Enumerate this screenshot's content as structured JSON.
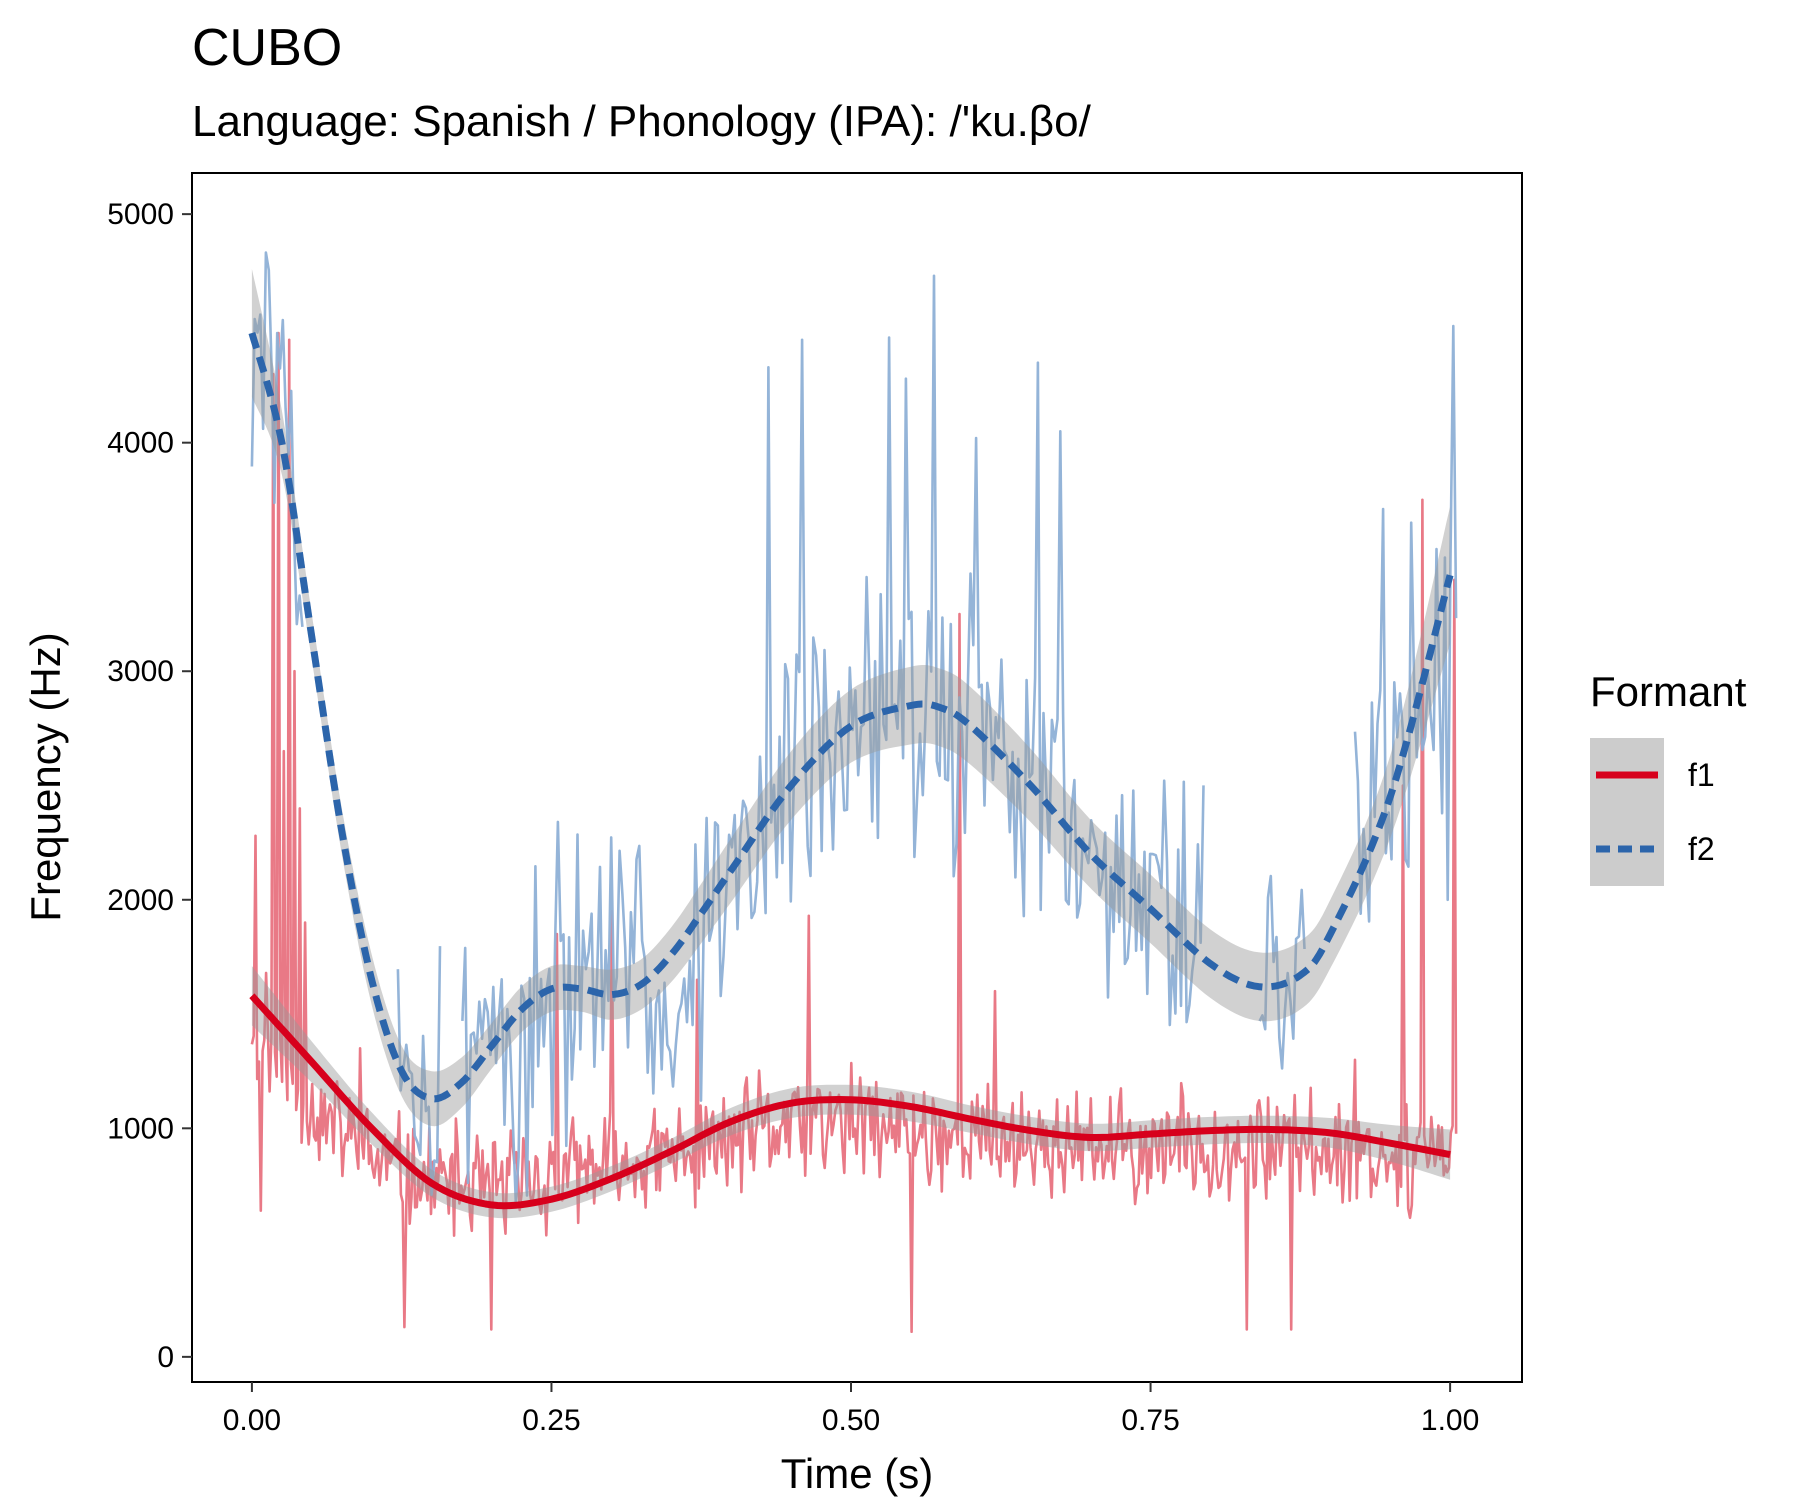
{
  "chart_data": {
    "type": "line",
    "title": "CUBO",
    "subtitle": "Language: Spanish / Phonology (IPA): /'ku.βo/",
    "xlabel": "Time (s)",
    "ylabel": "Frequency (Hz)",
    "xlim": [
      -0.05,
      1.06
    ],
    "ylim": [
      -110,
      5180
    ],
    "x_ticks": [
      0,
      0.25,
      0.5,
      0.75,
      1.0
    ],
    "x_tick_labels": [
      "0.00",
      "0.25",
      "0.50",
      "0.75",
      "1.00"
    ],
    "y_ticks": [
      0,
      1000,
      2000,
      3000,
      4000,
      5000
    ],
    "y_tick_labels": [
      "0",
      "1000",
      "2000",
      "3000",
      "4000",
      "5000"
    ],
    "grid": false,
    "legend": {
      "title": "Formant",
      "placement": "right",
      "entries": [
        {
          "label": "f1",
          "color": "#d7001c",
          "style": "solid"
        },
        {
          "label": "f2",
          "color": "#2c65ab",
          "style": "dashed"
        }
      ]
    },
    "colors": {
      "f1_raw": "#e8727f",
      "f2_raw": "#8eb0d6",
      "f1_smooth": "#d7001c",
      "f2_smooth": "#2c65ab",
      "ribbon": "#999999"
    },
    "series": [
      {
        "name": "f1",
        "kind": "smooth",
        "x": [
          0,
          0.05,
          0.1,
          0.15,
          0.2,
          0.25,
          0.3,
          0.35,
          0.4,
          0.45,
          0.5,
          0.55,
          0.6,
          0.65,
          0.7,
          0.75,
          0.8,
          0.85,
          0.9,
          0.95,
          1.0
        ],
        "y": [
          1580,
          1290,
          1000,
          760,
          665,
          690,
          780,
          900,
          1030,
          1110,
          1125,
          1095,
          1040,
          990,
          960,
          975,
          990,
          995,
          980,
          935,
          885
        ],
        "ci": [
          130,
          90,
          70,
          60,
          55,
          55,
          55,
          55,
          60,
          65,
          65,
          65,
          60,
          60,
          60,
          60,
          60,
          60,
          65,
          80,
          110
        ]
      },
      {
        "name": "f2",
        "kind": "smooth",
        "x": [
          0,
          0.025,
          0.05,
          0.075,
          0.1,
          0.125,
          0.15,
          0.175,
          0.2,
          0.225,
          0.25,
          0.275,
          0.3,
          0.325,
          0.35,
          0.375,
          0.4,
          0.45,
          0.5,
          0.55,
          0.575,
          0.6,
          0.65,
          0.7,
          0.75,
          0.8,
          0.84,
          0.875,
          0.9,
          0.95,
          1.0
        ],
        "y": [
          4480,
          4000,
          3150,
          2300,
          1650,
          1250,
          1130,
          1200,
          1360,
          1520,
          1610,
          1610,
          1585,
          1630,
          1760,
          1940,
          2130,
          2500,
          2760,
          2850,
          2840,
          2760,
          2500,
          2200,
          1960,
          1720,
          1620,
          1670,
          1850,
          2450,
          3420
        ],
        "ci": [
          280,
          140,
          100,
          100,
          110,
          110,
          120,
          110,
          100,
          100,
          100,
          100,
          110,
          110,
          120,
          130,
          140,
          150,
          160,
          170,
          170,
          170,
          160,
          150,
          150,
          150,
          150,
          150,
          150,
          180,
          300
        ]
      },
      {
        "name": "f1",
        "kind": "raw",
        "x_start": 0,
        "x_end": 1.005,
        "n": 680,
        "seed": 11,
        "center": [
          [
            0,
            1450
          ],
          [
            0.05,
            1100
          ],
          [
            0.1,
            860
          ],
          [
            0.15,
            760
          ],
          [
            0.2,
            750
          ],
          [
            0.25,
            780
          ],
          [
            0.3,
            820
          ],
          [
            0.35,
            880
          ],
          [
            0.4,
            950
          ],
          [
            0.45,
            1020
          ],
          [
            0.5,
            1020
          ],
          [
            0.55,
            990
          ],
          [
            0.6,
            960
          ],
          [
            0.65,
            930
          ],
          [
            0.7,
            900
          ],
          [
            0.75,
            910
          ],
          [
            0.8,
            930
          ],
          [
            0.85,
            930
          ],
          [
            0.9,
            910
          ],
          [
            0.95,
            880
          ],
          [
            1.0,
            860
          ]
        ],
        "spread": 300,
        "min": 110,
        "spikes": [
          [
            0.003,
            2280
          ],
          [
            0.007,
            640
          ],
          [
            0.012,
            1680
          ],
          [
            0.018,
            4300
          ],
          [
            0.022,
            4480
          ],
          [
            0.027,
            2650
          ],
          [
            0.031,
            4450
          ],
          [
            0.035,
            3000
          ],
          [
            0.04,
            2400
          ],
          [
            0.045,
            1900
          ],
          [
            0.09,
            1350
          ],
          [
            0.127,
            130
          ],
          [
            0.2,
            120
          ],
          [
            0.255,
            1850
          ],
          [
            0.3,
            1950
          ],
          [
            0.372,
            1650
          ],
          [
            0.465,
            1930
          ],
          [
            0.525,
            960
          ],
          [
            0.55,
            110
          ],
          [
            0.59,
            3250
          ],
          [
            0.62,
            1600
          ],
          [
            0.83,
            120
          ],
          [
            0.868,
            120
          ],
          [
            0.92,
            1300
          ],
          [
            0.96,
            2500
          ],
          [
            0.977,
            3750
          ],
          [
            0.984,
            1050
          ],
          [
            1.003,
            3400
          ]
        ]
      },
      {
        "name": "f2",
        "kind": "raw",
        "x_start": 0,
        "x_end": 1.005,
        "n": 430,
        "seed": 29,
        "center": [
          [
            0,
            4300
          ],
          [
            0.03,
            4200
          ],
          [
            0.04,
            3300
          ],
          [
            0.06,
            2600
          ],
          [
            0.1,
            1700
          ],
          [
            0.12,
            1300
          ],
          [
            0.15,
            1150
          ],
          [
            0.2,
            1350
          ],
          [
            0.25,
            1600
          ],
          [
            0.3,
            1580
          ],
          [
            0.35,
            1720
          ],
          [
            0.4,
            2050
          ],
          [
            0.45,
            2450
          ],
          [
            0.5,
            2700
          ],
          [
            0.55,
            2800
          ],
          [
            0.6,
            2750
          ],
          [
            0.65,
            2500
          ],
          [
            0.7,
            2200
          ],
          [
            0.75,
            2000
          ],
          [
            0.8,
            1760
          ],
          [
            0.85,
            1680
          ],
          [
            0.9,
            1850
          ],
          [
            0.95,
            2400
          ],
          [
            1.0,
            3300
          ]
        ],
        "spread": 850,
        "min": 600,
        "spikes": [
          [
            0.022,
            4480
          ],
          [
            0.045,
            4460
          ],
          [
            0.432,
            4330
          ],
          [
            0.458,
            4450
          ],
          [
            0.531,
            4460
          ],
          [
            0.545,
            4280
          ],
          [
            0.57,
            4730
          ],
          [
            0.605,
            4020
          ],
          [
            0.655,
            4350
          ],
          [
            0.675,
            4050
          ],
          [
            0.945,
            3710
          ],
          [
            0.968,
            3650
          ],
          [
            0.975,
            2950
          ],
          [
            0.998,
            2000
          ],
          [
            1.002,
            4510
          ]
        ],
        "gaps": [
          [
            0.043,
            0.12
          ],
          [
            0.158,
            0.175
          ],
          [
            0.795,
            0.84
          ],
          [
            0.88,
            0.92
          ]
        ]
      }
    ]
  }
}
